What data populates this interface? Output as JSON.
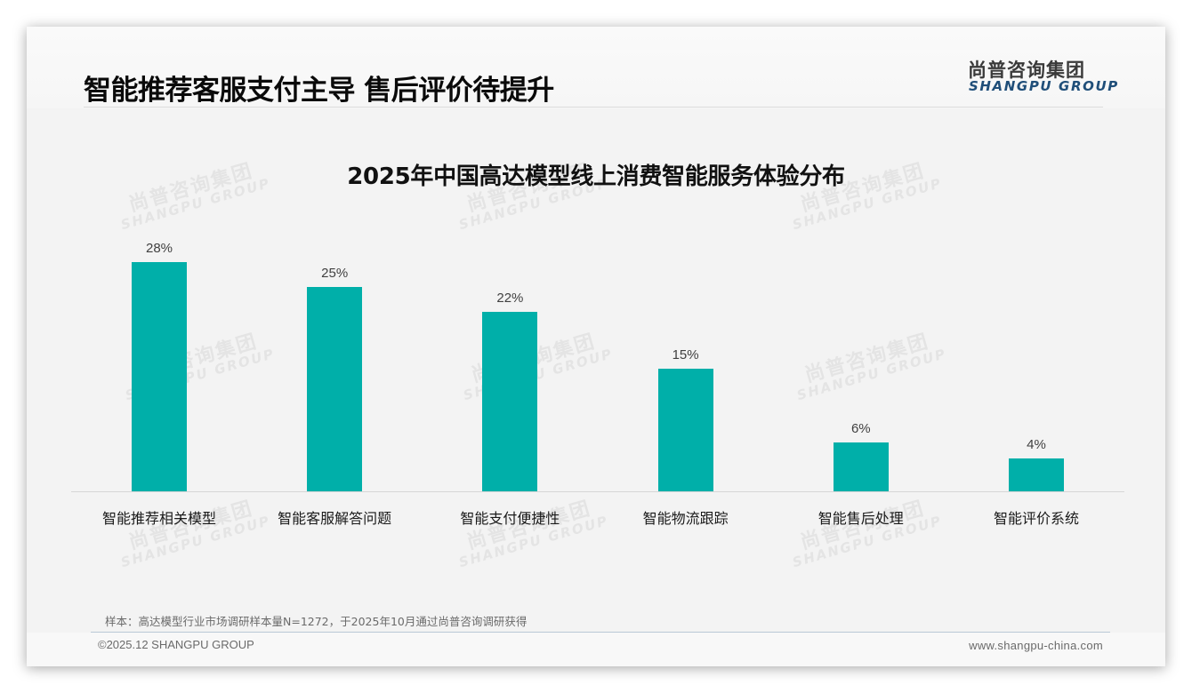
{
  "header": {
    "title": "智能推荐客服支付主导 售后评价待提升",
    "logo_cn": "尚普咨询集团",
    "logo_en": "SHANGPU GROUP"
  },
  "watermark": {
    "cn": "尚普咨询集团",
    "en": "SHANGPU GROUP"
  },
  "chart_data": {
    "type": "bar",
    "title": "2025年中国高达模型线上消费智能服务体验分布",
    "categories": [
      "智能推荐相关模型",
      "智能客服解答问题",
      "智能支付便捷性",
      "智能物流跟踪",
      "智能售后处理",
      "智能评价系统"
    ],
    "values": [
      28,
      25,
      22,
      15,
      6,
      4
    ],
    "value_labels": [
      "28%",
      "25%",
      "22%",
      "15%",
      "6%",
      "4%"
    ],
    "unit": "%",
    "xlabel": "",
    "ylabel": "",
    "ylim": [
      0,
      30
    ],
    "grid": false,
    "legend": "none",
    "bar_color": "#00afa9"
  },
  "footer": {
    "note": "样本：高达模型行业市场调研样本量N=1272，于2025年10月通过尚普咨询调研获得",
    "copyright": "©2025.12 SHANGPU GROUP",
    "website": "www.shangpu-china.com"
  }
}
